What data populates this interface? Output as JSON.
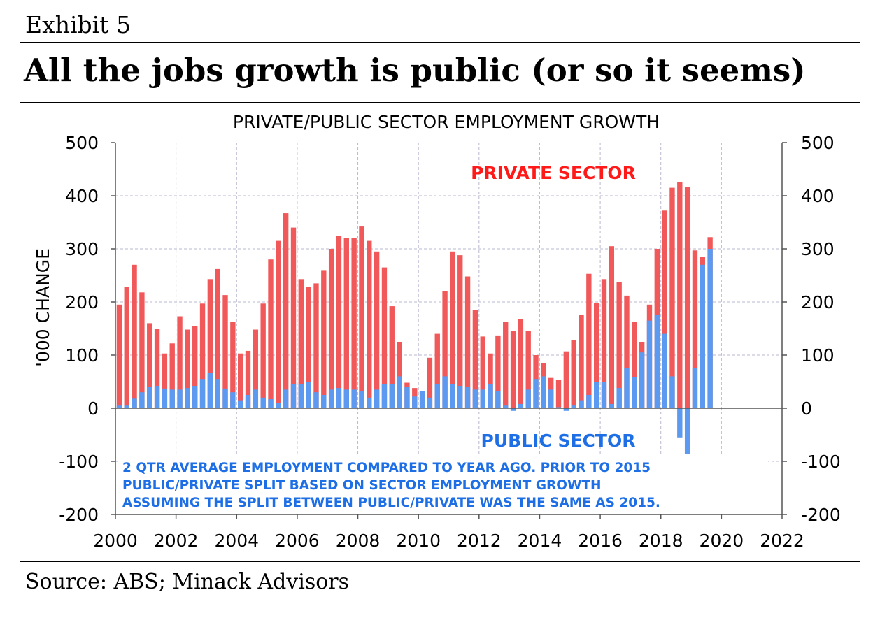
{
  "exhibit": "Exhibit 5",
  "headline": "All the jobs growth is public (or so it seems)",
  "source": "Source: ABS; Minack Advisors",
  "colors": {
    "private": "#f0585a",
    "public": "#5b9af0",
    "private_label": "#ff1a1a",
    "public_label": "#1e6fe6",
    "grid": "#b8b8d0"
  },
  "chart_data": {
    "type": "bar",
    "stacked": true,
    "title": "PRIVATE/PUBLIC SECTOR EMPLOYMENT GROWTH",
    "ylabel": "'000 CHANGE",
    "ylim": [
      -200,
      500
    ],
    "y_ticks": [
      "500",
      "400",
      "300",
      "200",
      "100",
      "0",
      "-100",
      "-200"
    ],
    "xlim": [
      2000,
      2022
    ],
    "x_ticks": [
      "2000",
      "2002",
      "2004",
      "2006",
      "2008",
      "2010",
      "2012",
      "2014",
      "2016",
      "2018",
      "2020",
      "2022"
    ],
    "grid": true,
    "series_labels": {
      "private": "PRIVATE SECTOR",
      "public": "PUBLIC SECTOR"
    },
    "note": [
      "2 QTR AVERAGE EMPLOYMENT COMPARED TO YEAR AGO.  PRIOR TO 2015",
      "PUBLIC/PRIVATE SPLIT BASED ON SECTOR EMPLOYMENT GROWTH",
      "ASSUMING THE SPLIT BETWEEN PUBLIC/PRIVATE WAS THE SAME AS 2015."
    ],
    "x_start": 2000.0,
    "x_step": 0.25,
    "total": [
      195,
      228,
      270,
      218,
      160,
      150,
      103,
      122,
      173,
      148,
      155,
      197,
      243,
      262,
      213,
      163,
      103,
      108,
      148,
      197,
      280,
      315,
      367,
      340,
      243,
      228,
      235,
      260,
      300,
      325,
      320,
      320,
      342,
      315,
      295,
      265,
      192,
      125,
      48,
      38,
      32,
      95,
      140,
      220,
      295,
      288,
      248,
      185,
      135,
      103,
      137,
      163,
      145,
      168,
      145,
      100,
      85,
      57,
      53,
      107,
      128,
      175,
      253,
      198,
      243,
      305,
      237,
      212,
      162,
      125,
      195,
      300,
      372,
      415,
      425,
      417,
      297,
      285,
      322
    ],
    "public": [
      5,
      5,
      18,
      30,
      40,
      42,
      37,
      35,
      35,
      38,
      42,
      55,
      66,
      55,
      37,
      30,
      15,
      25,
      35,
      20,
      17,
      10,
      35,
      45,
      45,
      50,
      30,
      25,
      35,
      38,
      35,
      35,
      32,
      20,
      35,
      45,
      45,
      60,
      40,
      22,
      32,
      20,
      45,
      60,
      45,
      42,
      40,
      35,
      35,
      45,
      32,
      5,
      -5,
      8,
      35,
      55,
      60,
      35,
      2,
      -5,
      5,
      15,
      25,
      50,
      50,
      8,
      38,
      75,
      58,
      105,
      165,
      175,
      140,
      60,
      -55,
      -95,
      75,
      270,
      300
    ]
  }
}
